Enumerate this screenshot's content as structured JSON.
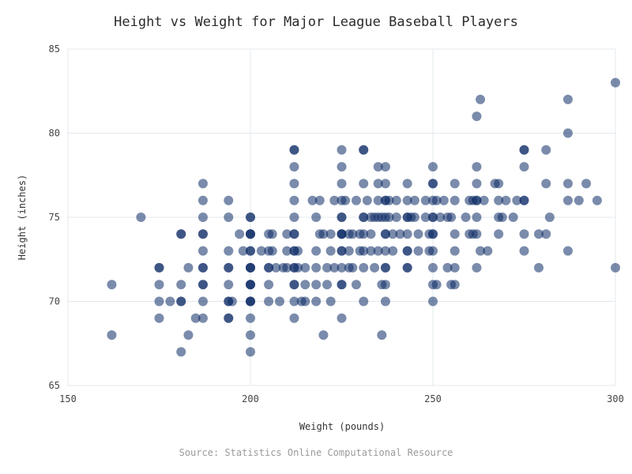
{
  "chart_data": {
    "type": "scatter",
    "title": "Height vs Weight for Major League Baseball Players",
    "xlabel": "Weight (pounds)",
    "ylabel": "Height (inches)",
    "source": "Source: Statistics Online Computational Resource",
    "xlim": [
      150,
      300
    ],
    "ylim": [
      65,
      85
    ],
    "xticks": [
      150,
      200,
      250,
      300
    ],
    "yticks": [
      65,
      70,
      75,
      80,
      85
    ],
    "grid": true,
    "point_color": "#0d2b66",
    "point_opacity": 0.55,
    "series": [
      {
        "points": [
          [
            162,
            71
          ],
          [
            162,
            68
          ],
          [
            170,
            75
          ],
          [
            175,
            72
          ],
          [
            175,
            72
          ],
          [
            175,
            71
          ],
          [
            175,
            70
          ],
          [
            175,
            69
          ],
          [
            178,
            70
          ],
          [
            181,
            74
          ],
          [
            181,
            74
          ],
          [
            181,
            71
          ],
          [
            181,
            70
          ],
          [
            181,
            70
          ],
          [
            181,
            67
          ],
          [
            183,
            72
          ],
          [
            183,
            68
          ],
          [
            185,
            69
          ],
          [
            187,
            77
          ],
          [
            187,
            76
          ],
          [
            187,
            75
          ],
          [
            187,
            74
          ],
          [
            187,
            74
          ],
          [
            187,
            73
          ],
          [
            187,
            72
          ],
          [
            187,
            72
          ],
          [
            187,
            71
          ],
          [
            187,
            71
          ],
          [
            187,
            70
          ],
          [
            187,
            69
          ],
          [
            194,
            76
          ],
          [
            194,
            75
          ],
          [
            194,
            73
          ],
          [
            194,
            72
          ],
          [
            194,
            72
          ],
          [
            194,
            71
          ],
          [
            194,
            70
          ],
          [
            194,
            70
          ],
          [
            194,
            69
          ],
          [
            194,
            69
          ],
          [
            195,
            70
          ],
          [
            197,
            74
          ],
          [
            198,
            73
          ],
          [
            200,
            75
          ],
          [
            200,
            75
          ],
          [
            200,
            74
          ],
          [
            200,
            74
          ],
          [
            200,
            74
          ],
          [
            200,
            73
          ],
          [
            200,
            73
          ],
          [
            200,
            72
          ],
          [
            200,
            72
          ],
          [
            200,
            72
          ],
          [
            200,
            71
          ],
          [
            200,
            71
          ],
          [
            200,
            71
          ],
          [
            200,
            70
          ],
          [
            200,
            70
          ],
          [
            200,
            70
          ],
          [
            200,
            69
          ],
          [
            200,
            68
          ],
          [
            200,
            67
          ],
          [
            203,
            73
          ],
          [
            205,
            74
          ],
          [
            205,
            73
          ],
          [
            205,
            72
          ],
          [
            205,
            72
          ],
          [
            205,
            71
          ],
          [
            205,
            70
          ],
          [
            206,
            74
          ],
          [
            206,
            73
          ],
          [
            207,
            72
          ],
          [
            208,
            70
          ],
          [
            209,
            72
          ],
          [
            210,
            74
          ],
          [
            210,
            73
          ],
          [
            210,
            72
          ],
          [
            212,
            79
          ],
          [
            212,
            79
          ],
          [
            212,
            78
          ],
          [
            212,
            77
          ],
          [
            212,
            76
          ],
          [
            212,
            75
          ],
          [
            212,
            74
          ],
          [
            212,
            74
          ],
          [
            212,
            73
          ],
          [
            212,
            73
          ],
          [
            212,
            72
          ],
          [
            212,
            72
          ],
          [
            212,
            71
          ],
          [
            212,
            71
          ],
          [
            212,
            70
          ],
          [
            212,
            69
          ],
          [
            213,
            73
          ],
          [
            213,
            72
          ],
          [
            214,
            70
          ],
          [
            215,
            72
          ],
          [
            215,
            71
          ],
          [
            215,
            70
          ],
          [
            217,
            76
          ],
          [
            218,
            75
          ],
          [
            218,
            73
          ],
          [
            218,
            72
          ],
          [
            218,
            71
          ],
          [
            218,
            70
          ],
          [
            219,
            76
          ],
          [
            219,
            74
          ],
          [
            220,
            74
          ],
          [
            220,
            68
          ],
          [
            221,
            72
          ],
          [
            221,
            71
          ],
          [
            222,
            74
          ],
          [
            222,
            73
          ],
          [
            222,
            70
          ],
          [
            223,
            76
          ],
          [
            223,
            72
          ],
          [
            225,
            79
          ],
          [
            225,
            78
          ],
          [
            225,
            77
          ],
          [
            225,
            76
          ],
          [
            225,
            75
          ],
          [
            225,
            75
          ],
          [
            225,
            74
          ],
          [
            225,
            74
          ],
          [
            225,
            74
          ],
          [
            225,
            73
          ],
          [
            225,
            73
          ],
          [
            225,
            72
          ],
          [
            225,
            71
          ],
          [
            225,
            71
          ],
          [
            225,
            69
          ],
          [
            226,
            76
          ],
          [
            227,
            74
          ],
          [
            227,
            73
          ],
          [
            227,
            72
          ],
          [
            228,
            74
          ],
          [
            228,
            72
          ],
          [
            229,
            71
          ],
          [
            229,
            76
          ],
          [
            230,
            74
          ],
          [
            230,
            73
          ],
          [
            231,
            79
          ],
          [
            231,
            79
          ],
          [
            231,
            77
          ],
          [
            231,
            75
          ],
          [
            231,
            75
          ],
          [
            231,
            74
          ],
          [
            231,
            73
          ],
          [
            231,
            72
          ],
          [
            231,
            70
          ],
          [
            232,
            76
          ],
          [
            233,
            75
          ],
          [
            233,
            74
          ],
          [
            233,
            73
          ],
          [
            234,
            72
          ],
          [
            234,
            75
          ],
          [
            235,
            77
          ],
          [
            235,
            78
          ],
          [
            235,
            76
          ],
          [
            235,
            75
          ],
          [
            235,
            73
          ],
          [
            236,
            75
          ],
          [
            236,
            71
          ],
          [
            236,
            68
          ],
          [
            237,
            78
          ],
          [
            237,
            77
          ],
          [
            237,
            76
          ],
          [
            237,
            76
          ],
          [
            237,
            75
          ],
          [
            237,
            74
          ],
          [
            237,
            74
          ],
          [
            237,
            73
          ],
          [
            237,
            72
          ],
          [
            237,
            72
          ],
          [
            237,
            71
          ],
          [
            237,
            70
          ],
          [
            238,
            76
          ],
          [
            238,
            75
          ],
          [
            239,
            74
          ],
          [
            239,
            73
          ],
          [
            240,
            75
          ],
          [
            240,
            76
          ],
          [
            241,
            74
          ],
          [
            243,
            77
          ],
          [
            243,
            76
          ],
          [
            243,
            75
          ],
          [
            243,
            75
          ],
          [
            243,
            74
          ],
          [
            243,
            73
          ],
          [
            243,
            73
          ],
          [
            243,
            72
          ],
          [
            243,
            72
          ],
          [
            244,
            75
          ],
          [
            245,
            76
          ],
          [
            245,
            75
          ],
          [
            246,
            74
          ],
          [
            246,
            73
          ],
          [
            248,
            76
          ],
          [
            248,
            75
          ],
          [
            249,
            74
          ],
          [
            249,
            73
          ],
          [
            250,
            78
          ],
          [
            250,
            77
          ],
          [
            250,
            77
          ],
          [
            250,
            76
          ],
          [
            250,
            75
          ],
          [
            250,
            75
          ],
          [
            250,
            74
          ],
          [
            250,
            74
          ],
          [
            250,
            73
          ],
          [
            250,
            72
          ],
          [
            250,
            71
          ],
          [
            250,
            70
          ],
          [
            251,
            76
          ],
          [
            251,
            71
          ],
          [
            252,
            75
          ],
          [
            253,
            76
          ],
          [
            254,
            75
          ],
          [
            254,
            72
          ],
          [
            255,
            71
          ],
          [
            255,
            75
          ],
          [
            256,
            77
          ],
          [
            256,
            76
          ],
          [
            256,
            74
          ],
          [
            256,
            73
          ],
          [
            256,
            72
          ],
          [
            256,
            71
          ],
          [
            259,
            75
          ],
          [
            260,
            74
          ],
          [
            260,
            76
          ],
          [
            261,
            76
          ],
          [
            261,
            74
          ],
          [
            262,
            81
          ],
          [
            262,
            78
          ],
          [
            262,
            77
          ],
          [
            262,
            76
          ],
          [
            262,
            76
          ],
          [
            262,
            75
          ],
          [
            262,
            74
          ],
          [
            262,
            72
          ],
          [
            263,
            82
          ],
          [
            263,
            73
          ],
          [
            264,
            76
          ],
          [
            265,
            73
          ],
          [
            267,
            77
          ],
          [
            268,
            77
          ],
          [
            268,
            76
          ],
          [
            268,
            75
          ],
          [
            268,
            74
          ],
          [
            269,
            75
          ],
          [
            270,
            76
          ],
          [
            272,
            75
          ],
          [
            273,
            76
          ],
          [
            275,
            79
          ],
          [
            275,
            79
          ],
          [
            275,
            78
          ],
          [
            275,
            76
          ],
          [
            275,
            76
          ],
          [
            275,
            74
          ],
          [
            275,
            73
          ],
          [
            279,
            74
          ],
          [
            279,
            72
          ],
          [
            281,
            79
          ],
          [
            281,
            77
          ],
          [
            281,
            74
          ],
          [
            282,
            75
          ],
          [
            287,
            82
          ],
          [
            287,
            80
          ],
          [
            287,
            77
          ],
          [
            287,
            76
          ],
          [
            287,
            73
          ],
          [
            290,
            76
          ],
          [
            292,
            77
          ],
          [
            295,
            76
          ],
          [
            300,
            83
          ],
          [
            300,
            72
          ]
        ]
      }
    ]
  }
}
